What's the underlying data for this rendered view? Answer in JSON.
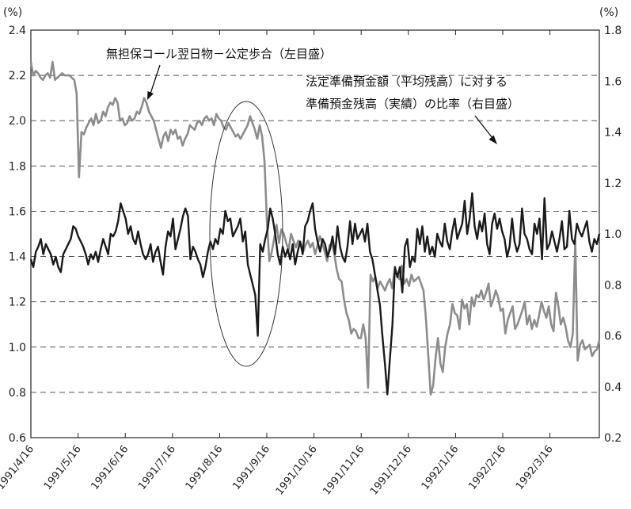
{
  "chart_data": {
    "type": "line",
    "title": "",
    "left_axis": {
      "unit": "(%)",
      "range": [
        0.6,
        2.4
      ],
      "ticks": [
        "0.6",
        "0.8",
        "1.0",
        "1.2",
        "1.4",
        "1.6",
        "1.8",
        "2.0",
        "2.2",
        "2.4"
      ]
    },
    "right_axis": {
      "unit": "(%)",
      "range": [
        0.2,
        1.8
      ],
      "ticks": [
        "0.2",
        "0.4",
        "0.6",
        "0.8",
        "1.0",
        "1.2",
        "1.4",
        "1.6",
        "1.8"
      ]
    },
    "x_ticks": [
      "1991/4/16",
      "1991/5/16",
      "1991/6/16",
      "1991/7/16",
      "1991/8/16",
      "1991/9/16",
      "1991/10/16",
      "1991/11/16",
      "1991/12/16",
      "1992/1/16",
      "1992/2/16",
      "1992/3/16"
    ],
    "grid": "horizontal dashed",
    "annotations": {
      "call_rate": "無担保コール翌日物－公定歩合（左目盛）",
      "reserve_ratio_line1": "法定準備預金額（平均残高）に対する",
      "reserve_ratio_line2": "準備預金残高（実績）の比率（右目盛）"
    },
    "series": [
      {
        "key": "call_rate",
        "axis": "left",
        "color": "#8c8c8c",
        "values": [
          2.26,
          2.2,
          2.22,
          2.21,
          2.19,
          2.18,
          2.2,
          2.21,
          2.19,
          2.26,
          2.18,
          2.19,
          2.2,
          2.21,
          2.2,
          2.2,
          2.2,
          2.19,
          2.18,
          2.12,
          1.75,
          1.95,
          1.94,
          1.97,
          1.99,
          2.01,
          1.98,
          2.03,
          1.99,
          2.0,
          2.04,
          2.02,
          2.06,
          2.08,
          2.07,
          2.1,
          2.08,
          2.0,
          2.01,
          1.98,
          1.99,
          2.02,
          2.0,
          2.01,
          2.04,
          2.03,
          2.06,
          2.1,
          2.08,
          2.04,
          2.02,
          2.0,
          1.96,
          1.92,
          1.88,
          1.93,
          1.95,
          1.91,
          1.96,
          1.94,
          1.96,
          1.92,
          1.93,
          1.89,
          1.92,
          1.94,
          1.98,
          1.97,
          1.96,
          1.99,
          2.0,
          1.98,
          2.01,
          2.02,
          2.0,
          2.01,
          1.98,
          2.03,
          2.01,
          2.0,
          1.97,
          1.96,
          1.99,
          1.97,
          1.95,
          1.93,
          1.94,
          1.92,
          1.94,
          1.96,
          1.98,
          2.02,
          1.99,
          1.96,
          1.92,
          1.98,
          1.93,
          1.82,
          1.55,
          1.38,
          1.42,
          1.48,
          1.54,
          1.46,
          1.52,
          1.5,
          1.46,
          1.43,
          1.5,
          1.47,
          1.44,
          1.47,
          1.46,
          1.42,
          1.45,
          1.47,
          1.44,
          1.46,
          1.41,
          1.45,
          1.49,
          1.46,
          1.42,
          1.38,
          1.45,
          1.46,
          1.41,
          1.34,
          1.3,
          1.29,
          1.21,
          1.15,
          1.12,
          1.06,
          1.08,
          1.07,
          1.04,
          1.04,
          1.1,
          1.04,
          0.82,
          1.32,
          1.29,
          1.31,
          1.26,
          1.29,
          1.27,
          1.25,
          1.28,
          1.3,
          1.26,
          1.34,
          1.32,
          1.3,
          1.36,
          1.28,
          1.3,
          1.27,
          1.32,
          1.29,
          1.3,
          1.31,
          1.28,
          1.25,
          1.13,
          0.96,
          0.79,
          0.83,
          0.95,
          1.04,
          0.93,
          0.89,
          1.0,
          1.06,
          1.1,
          1.19,
          1.15,
          1.14,
          1.08,
          1.21,
          1.17,
          1.19,
          1.1,
          1.22,
          1.18,
          1.23,
          1.22,
          1.25,
          1.21,
          1.24,
          1.28,
          1.18,
          1.21,
          1.25,
          1.22,
          1.16,
          1.17,
          1.06,
          1.12,
          1.15,
          1.18,
          1.08,
          1.1,
          1.13,
          1.16,
          1.2,
          1.1,
          1.14,
          1.08,
          1.12,
          1.09,
          1.14,
          1.2,
          1.16,
          1.13,
          1.18,
          1.1,
          1.07,
          1.24,
          1.18,
          1.1,
          1.13,
          1.09,
          1.03,
          1.0,
          1.06,
          1.47,
          0.94,
          1.01,
          1.03,
          0.99,
          1.0,
          1.01,
          0.96,
          0.98,
          0.99,
          1.03
        ]
      },
      {
        "key": "reserve_ratio",
        "axis": "right",
        "color": "#1a1a1a",
        "values": [
          0.9,
          0.87,
          0.93,
          0.95,
          0.98,
          0.92,
          0.96,
          0.94,
          0.92,
          0.88,
          0.91,
          0.87,
          0.85,
          0.92,
          0.94,
          0.96,
          0.98,
          1.03,
          1.02,
          0.99,
          0.97,
          0.95,
          0.92,
          0.88,
          0.92,
          0.9,
          0.93,
          0.89,
          0.94,
          0.98,
          0.95,
          0.92,
          1.0,
          0.99,
          1.01,
          1.05,
          1.12,
          1.09,
          1.06,
          1.0,
          1.03,
          0.98,
          0.96,
          1.01,
          0.96,
          0.92,
          0.9,
          0.92,
          0.96,
          0.89,
          0.93,
          0.95,
          0.89,
          0.84,
          0.95,
          1.01,
          0.99,
          1.06,
          0.94,
          0.98,
          1.02,
          1.07,
          1.1,
          1.07,
          0.9,
          0.95,
          0.93,
          0.9,
          0.88,
          0.83,
          0.87,
          0.93,
          0.97,
          0.94,
          0.98,
          0.96,
          1.02,
          1.0,
          1.09,
          1.05,
          1.06,
          0.99,
          1.01,
          1.03,
          1.06,
          0.97,
          1.01,
          0.88,
          0.84,
          0.8,
          0.76,
          0.6,
          0.96,
          0.93,
          0.98,
          1.02,
          1.1,
          1.06,
          1.0,
          0.92,
          0.88,
          0.95,
          0.91,
          0.94,
          0.9,
          0.96,
          0.88,
          0.93,
          0.97,
          0.92,
          1.03,
          1.05,
          1.09,
          1.12,
          1.02,
          0.97,
          0.93,
          0.98,
          0.96,
          0.91,
          0.94,
          0.99,
          0.92,
          1.03,
          0.95,
          0.91,
          0.89,
          0.95,
          1.05,
          0.96,
          1.04,
          0.98,
          1.0,
          1.02,
          0.97,
          1.04,
          0.93,
          0.9,
          0.84,
          0.78,
          0.72,
          0.6,
          0.49,
          0.37,
          0.51,
          0.64,
          0.87,
          0.83,
          0.87,
          0.77,
          0.95,
          0.98,
          0.87,
          0.91,
          0.89,
          1.02,
          0.96,
          1.03,
          0.93,
          0.99,
          0.92,
          0.95,
          0.91,
          1.0,
          0.97,
          0.95,
          1.04,
          0.97,
          0.94,
          1.01,
          1.06,
          0.98,
          1.01,
          1.04,
          1.13,
          1.0,
          1.06,
          1.16,
          1.03,
          0.98,
          1.05,
          1.01,
          1.08,
          0.96,
          0.92,
          1.04,
          1.08,
          1.02,
          1.06,
          1.01,
          0.98,
          0.91,
          0.95,
          1.06,
          0.97,
          0.93,
          0.96,
          1.1,
          1.0,
          0.98,
          0.94,
          0.92,
          1.04,
          1.0,
          1.06,
          0.9,
          1.14,
          0.94,
          0.96,
          1.01,
          0.97,
          0.93,
          0.98,
          1.05,
          0.94,
          0.95,
          1.09,
          0.98,
          0.96,
          1.04,
          1.01,
          0.99,
          1.02,
          1.05,
          0.97,
          0.93,
          0.98,
          0.96,
          1.0
        ]
      }
    ]
  }
}
